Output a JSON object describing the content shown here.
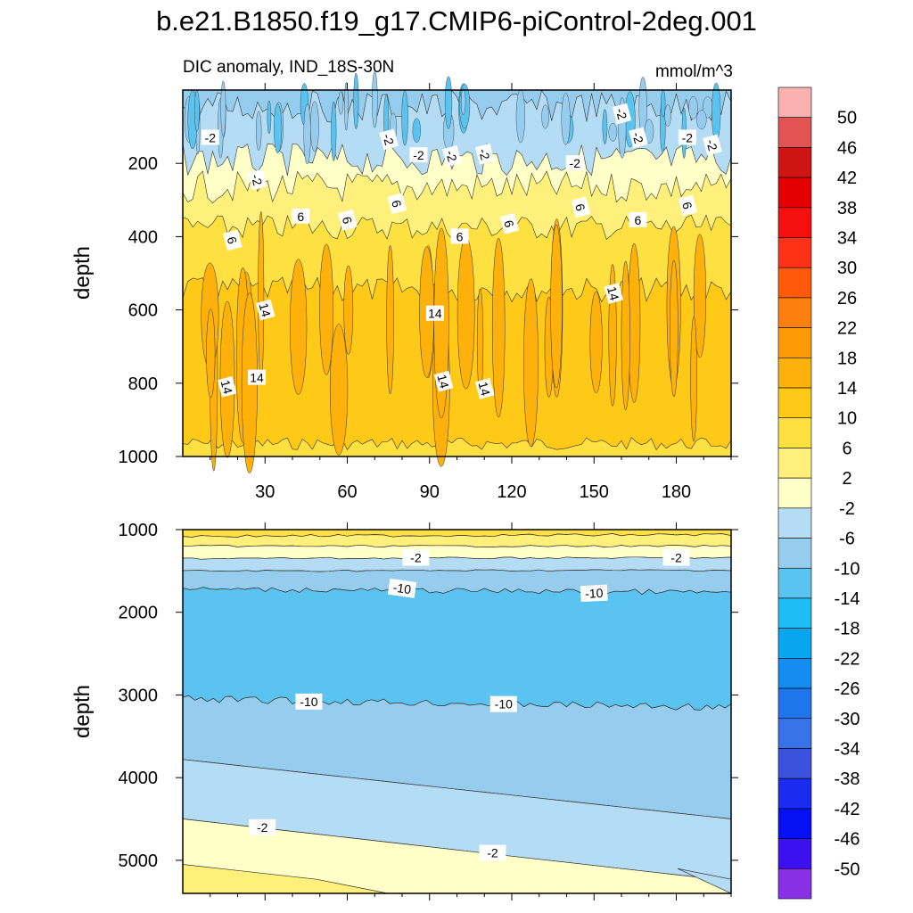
{
  "title": "b.e21.B1850.f19_g17.CMIP6-piControl-2deg.001",
  "colorbar": {
    "levels": [
      "50",
      "46",
      "42",
      "38",
      "34",
      "30",
      "26",
      "22",
      "18",
      "14",
      "10",
      "6",
      "2",
      "-2",
      "-6",
      "-10",
      "-14",
      "-18",
      "-22",
      "-26",
      "-30",
      "-34",
      "-38",
      "-42",
      "-46",
      "-50"
    ],
    "colors": [
      "#fcb1b1",
      "#e25454",
      "#cf1414",
      "#e20000",
      "#f51010",
      "#ff3218",
      "#ff5a0a",
      "#fd7f0d",
      "#fe9a05",
      "#feb10a",
      "#fec917",
      "#fee040",
      "#fff07b",
      "#ffffc8",
      "#b4dcf4",
      "#96cdee",
      "#5ac3f0",
      "#1fbdf6",
      "#07a6ee",
      "#158cf0",
      "#1f75ec",
      "#3973ea",
      "#3a52de",
      "#1c2bf0",
      "#0510f5",
      "#3c10ef",
      "#8830e6"
    ]
  },
  "chart_data": [
    {
      "type": "contour",
      "subtitle_left": "DIC anomaly, IND_18S-30N",
      "subtitle_right": "mmol/m^3",
      "ylabel": "depth",
      "xlim": [
        0,
        200
      ],
      "ylim": [
        1000,
        0
      ],
      "xticks": [
        "30",
        "60",
        "90",
        "120",
        "150",
        "180"
      ],
      "yticks": [
        "200",
        "400",
        "600",
        "800",
        "1000"
      ],
      "bands": [
        {
          "label": "-6",
          "top": 0,
          "bottom": 45,
          "color": "#96cdee"
        },
        {
          "label": "-2",
          "top": 45,
          "bottom": 190,
          "color": "#b4dcf4"
        },
        {
          "label": "2",
          "top": 190,
          "bottom": 265,
          "color": "#ffffc8"
        },
        {
          "label": "6",
          "top": 265,
          "bottom": 375,
          "color": "#fff07b"
        },
        {
          "label": "10",
          "top": 375,
          "bottom": 545,
          "color": "#fee040"
        },
        {
          "label": "14",
          "top": 545,
          "bottom": 965,
          "color": "#fec917"
        },
        {
          "label": "6",
          "top": 965,
          "bottom": 1000,
          "color": "#fee040"
        }
      ],
      "contour_labels": [
        {
          "text": "-2",
          "x": 10,
          "y": 130
        },
        {
          "text": "-2",
          "x": 27,
          "y": 245
        },
        {
          "text": "-2",
          "x": 75,
          "y": 135
        },
        {
          "text": "-2",
          "x": 86,
          "y": 178
        },
        {
          "text": "-2",
          "x": 98,
          "y": 180
        },
        {
          "text": "-2",
          "x": 110,
          "y": 175
        },
        {
          "text": "-2",
          "x": 143,
          "y": 200
        },
        {
          "text": "-2",
          "x": 160,
          "y": 65
        },
        {
          "text": "-2",
          "x": 166,
          "y": 130
        },
        {
          "text": "-2",
          "x": 184,
          "y": 130
        },
        {
          "text": "-2",
          "x": 193,
          "y": 150
        },
        {
          "text": "6",
          "x": 18,
          "y": 410
        },
        {
          "text": "6",
          "x": 43,
          "y": 345
        },
        {
          "text": "6",
          "x": 60,
          "y": 355
        },
        {
          "text": "6",
          "x": 78,
          "y": 310
        },
        {
          "text": "6",
          "x": 101,
          "y": 400
        },
        {
          "text": "6",
          "x": 119,
          "y": 365
        },
        {
          "text": "6",
          "x": 145,
          "y": 320
        },
        {
          "text": "6",
          "x": 166,
          "y": 355
        },
        {
          "text": "6",
          "x": 184,
          "y": 315
        },
        {
          "text": "14",
          "x": 30,
          "y": 600
        },
        {
          "text": "14",
          "x": 92,
          "y": 610
        },
        {
          "text": "14",
          "x": 157,
          "y": 555
        },
        {
          "text": "14",
          "x": 16,
          "y": 810
        },
        {
          "text": "14",
          "x": 27,
          "y": 785
        },
        {
          "text": "14",
          "x": 95,
          "y": 795
        },
        {
          "text": "14",
          "x": 110,
          "y": 815
        }
      ]
    },
    {
      "type": "contour",
      "ylabel": "depth",
      "xlim": [
        0,
        200
      ],
      "ylim": [
        5400,
        1000
      ],
      "yticks": [
        "1000",
        "2000",
        "3000",
        "4000",
        "5000"
      ],
      "contour_labels": [
        {
          "text": "-2",
          "x": 85,
          "y": 1340
        },
        {
          "text": "-2",
          "x": 180,
          "y": 1340
        },
        {
          "text": "-10",
          "x": 80,
          "y": 1710
        },
        {
          "text": "-10",
          "x": 150,
          "y": 1770
        },
        {
          "text": "-10",
          "x": 46,
          "y": 3080
        },
        {
          "text": "-10",
          "x": 117,
          "y": 3110
        },
        {
          "text": "-2",
          "x": 29,
          "y": 4600
        },
        {
          "text": "-2",
          "x": 113,
          "y": 4910
        }
      ]
    }
  ]
}
